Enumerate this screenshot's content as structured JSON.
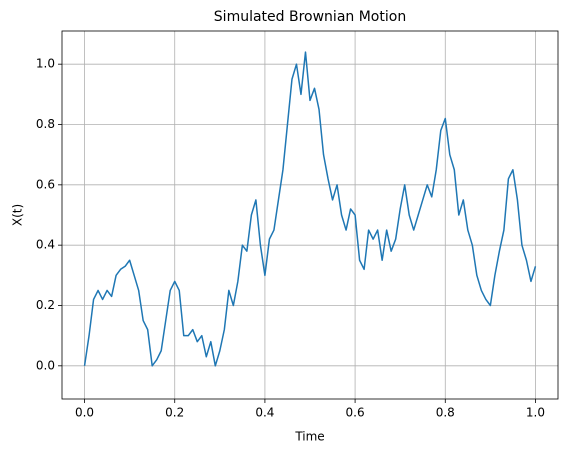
{
  "chart_data": {
    "type": "line",
    "title": "Simulated Brownian Motion",
    "xlabel": "Time",
    "ylabel": "X(t)",
    "x": [
      0,
      0.01,
      0.02,
      0.03,
      0.04,
      0.05,
      0.06,
      0.07,
      0.08,
      0.09,
      0.1,
      0.11,
      0.12,
      0.13,
      0.14,
      0.15,
      0.16,
      0.17,
      0.18,
      0.19,
      0.2,
      0.21,
      0.22,
      0.23,
      0.24,
      0.25,
      0.26,
      0.27,
      0.28,
      0.29,
      0.3,
      0.31,
      0.32,
      0.33,
      0.34,
      0.35,
      0.36,
      0.37,
      0.38,
      0.39,
      0.4,
      0.41,
      0.42,
      0.43,
      0.44,
      0.45,
      0.46,
      0.47,
      0.48,
      0.49,
      0.5,
      0.51,
      0.52,
      0.53,
      0.54,
      0.55,
      0.56,
      0.57,
      0.58,
      0.59,
      0.6,
      0.61,
      0.62,
      0.63,
      0.64,
      0.65,
      0.66,
      0.67,
      0.68,
      0.69,
      0.7,
      0.71,
      0.72,
      0.73,
      0.74,
      0.75,
      0.76,
      0.77,
      0.78,
      0.79,
      0.8,
      0.81,
      0.82,
      0.83,
      0.84,
      0.85,
      0.86,
      0.87,
      0.88,
      0.89,
      0.9,
      0.91,
      0.92,
      0.93,
      0.94,
      0.95,
      0.96,
      0.97,
      0.98,
      0.99,
      1.0
    ],
    "series": [
      {
        "name": "X(t)",
        "color": "#1f77b4",
        "values": [
          0,
          0.1,
          0.22,
          0.25,
          0.22,
          0.25,
          0.23,
          0.3,
          0.32,
          0.33,
          0.35,
          0.3,
          0.25,
          0.15,
          0.12,
          0,
          0.02,
          0.05,
          0.15,
          0.25,
          0.28,
          0.25,
          0.1,
          0.1,
          0.12,
          0.08,
          0.1,
          0.03,
          0.08,
          0,
          0.05,
          0.12,
          0.25,
          0.2,
          0.28,
          0.4,
          0.38,
          0.5,
          0.55,
          0.4,
          0.3,
          0.42,
          0.45,
          0.55,
          0.65,
          0.8,
          0.95,
          1.0,
          0.9,
          1.04,
          0.88,
          0.92,
          0.85,
          0.7,
          0.62,
          0.55,
          0.6,
          0.5,
          0.45,
          0.52,
          0.5,
          0.35,
          0.32,
          0.45,
          0.42,
          0.45,
          0.35,
          0.45,
          0.38,
          0.42,
          0.52,
          0.6,
          0.5,
          0.45,
          0.5,
          0.55,
          0.6,
          0.56,
          0.65,
          0.78,
          0.82,
          0.7,
          0.65,
          0.5,
          0.55,
          0.45,
          0.4,
          0.3,
          0.25,
          0.22,
          0.2,
          0.3,
          0.38,
          0.45,
          0.62,
          0.65,
          0.55,
          0.4,
          0.35,
          0.28,
          0.33
        ]
      }
    ],
    "xlim": [
      -0.05,
      1.05
    ],
    "ylim": [
      -0.11,
      1.11
    ],
    "xticks": [
      {
        "value": 0,
        "label": "0.0"
      },
      {
        "value": 0.2,
        "label": "0.2"
      },
      {
        "value": 0.4,
        "label": "0.4"
      },
      {
        "value": 0.6,
        "label": "0.6"
      },
      {
        "value": 0.8,
        "label": "0.8"
      },
      {
        "value": 1.0,
        "label": "1.0"
      }
    ],
    "yticks": [
      {
        "value": 0,
        "label": "0.0"
      },
      {
        "value": 0.2,
        "label": "0.2"
      },
      {
        "value": 0.4,
        "label": "0.4"
      },
      {
        "value": 0.6,
        "label": "0.6"
      },
      {
        "value": 0.8,
        "label": "0.8"
      },
      {
        "value": 1.0,
        "label": "1.0"
      }
    ],
    "grid": true
  }
}
